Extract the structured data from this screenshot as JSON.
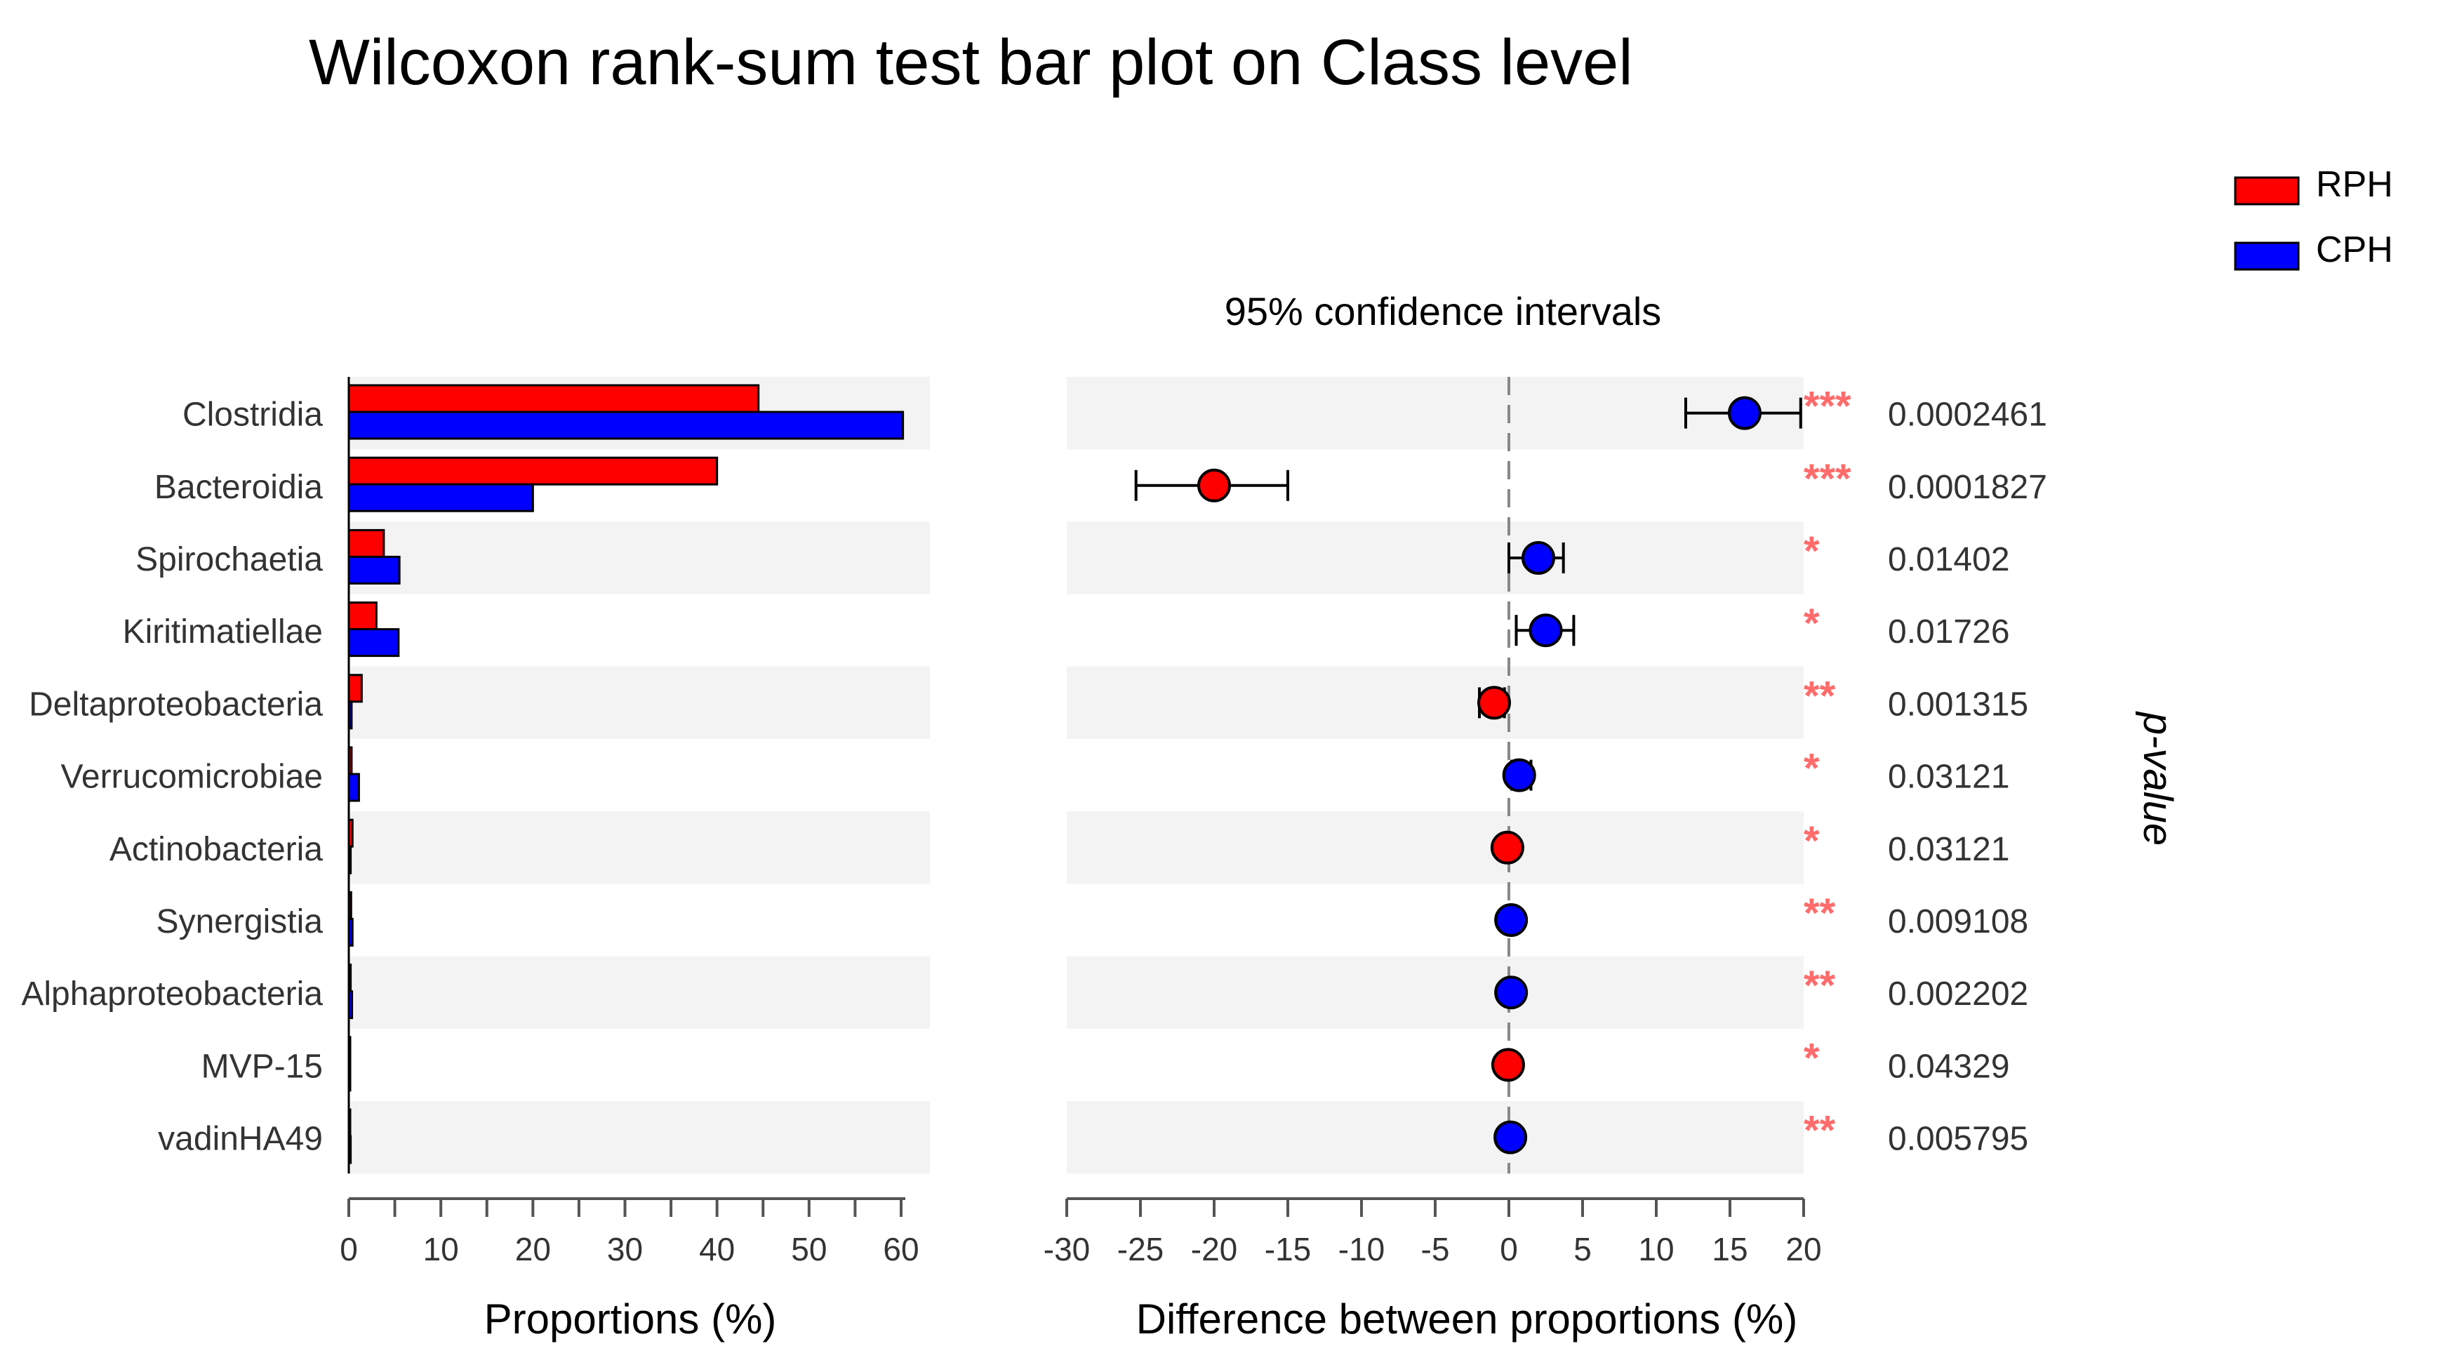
{
  "chart_data": [
    {
      "type": "bar",
      "title": "Wilcoxon rank-sum test bar plot on Class level",
      "categories": [
        "Clostridia",
        "Bacteroidia",
        "Spirochaetia",
        "Kiritimatiellae",
        "Deltaproteobacteria",
        "Verrucomicrobiae",
        "Actinobacteria",
        "Synergistia",
        "Alphaproteobacteria",
        "MVP-15",
        "vadinHA49"
      ],
      "series": [
        {
          "name": "RPH",
          "color": "#ff0000",
          "values": [
            44.5,
            40,
            3.8,
            3,
            1.4,
            0.3,
            0.4,
            0.25,
            0.2,
            0.15,
            0.1
          ]
        },
        {
          "name": "CPH",
          "color": "#0000ff",
          "values": [
            60.2,
            20,
            5.5,
            5.4,
            0.3,
            1.1,
            0.2,
            0.4,
            0.35,
            0.05,
            0.2
          ]
        }
      ],
      "xlabel": "Proportions (%)",
      "xlim": [
        0,
        62
      ],
      "ticks": [
        0,
        10,
        20,
        30,
        40,
        50,
        60
      ],
      "legend": {
        "placement": "top-right",
        "entries": [
          "RPH",
          "CPH"
        ]
      }
    },
    {
      "type": "scatter",
      "title": "95% confidence intervals",
      "categories": [
        "Clostridia",
        "Bacteroidia",
        "Spirochaetia",
        "Kiritimatiellae",
        "Deltaproteobacteria",
        "Verrucomicrobiae",
        "Actinobacteria",
        "Synergistia",
        "Alphaproteobacteria",
        "MVP-15",
        "vadinHA49"
      ],
      "points": [
        {
          "diff": 16,
          "ci": [
            12,
            19.8
          ],
          "color": "#0000ff"
        },
        {
          "diff": -20,
          "ci": [
            -25.3,
            -15
          ],
          "color": "#ff0000"
        },
        {
          "diff": 2,
          "ci": [
            0,
            3.7
          ],
          "color": "#0000ff"
        },
        {
          "diff": 2.5,
          "ci": [
            0.5,
            4.4
          ],
          "color": "#0000ff"
        },
        {
          "diff": -1,
          "ci": [
            -2,
            -0.3
          ],
          "color": "#ff0000"
        },
        {
          "diff": 0.7,
          "ci": [
            0.2,
            1.5
          ],
          "color": "#0000ff"
        },
        {
          "diff": -0.1,
          "ci": [
            -0.4,
            0.1
          ],
          "color": "#ff0000"
        },
        {
          "diff": 0.15,
          "ci": [
            0,
            0.3
          ],
          "color": "#0000ff"
        },
        {
          "diff": 0.15,
          "ci": [
            0,
            0.3
          ],
          "color": "#0000ff"
        },
        {
          "diff": -0.05,
          "ci": [
            -0.2,
            0.05
          ],
          "color": "#ff0000"
        },
        {
          "diff": 0.1,
          "ci": [
            0,
            0.2
          ],
          "color": "#0000ff"
        }
      ],
      "significance": [
        "***",
        "***",
        "*",
        "*",
        "**",
        "*",
        "*",
        "**",
        "**",
        "*",
        "**"
      ],
      "p_values": [
        "0.0002461",
        "0.0001827",
        "0.01402",
        "0.01726",
        "0.001315",
        "0.03121",
        "0.03121",
        "0.009108",
        "0.002202",
        "0.04329",
        "0.005795"
      ],
      "xlabel": "Difference between proportions (%)",
      "xlim": [
        -30,
        20
      ],
      "ticks": [
        -30,
        -25,
        -20,
        -15,
        -10,
        -5,
        0,
        5,
        10,
        15,
        20
      ],
      "p_label": "p-value"
    }
  ]
}
